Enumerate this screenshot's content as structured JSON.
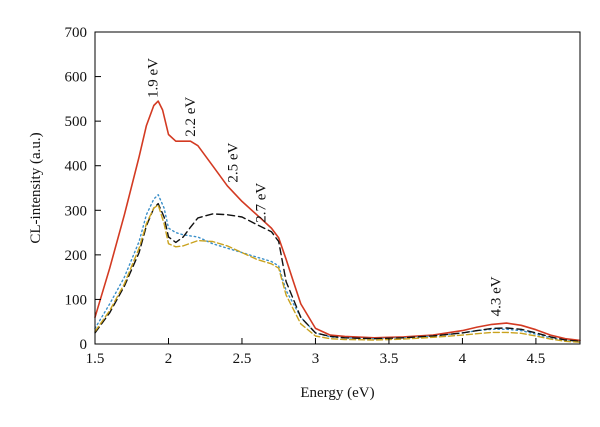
{
  "chart_data": {
    "type": "line",
    "title": "",
    "xlabel": "Energy (eV)",
    "ylabel": "CL-intensity (a.u.)",
    "xlim": [
      1.5,
      4.8
    ],
    "ylim": [
      0,
      700
    ],
    "x_ticks": [
      1.5,
      2,
      2.5,
      3,
      3.5,
      4,
      4.5
    ],
    "x_tick_labels": [
      "1.5",
      "2",
      "2.5",
      "3",
      "3.5",
      "4",
      "4.5"
    ],
    "y_ticks": [
      0,
      100,
      200,
      300,
      400,
      500,
      600,
      700
    ],
    "y_tick_labels": [
      "0",
      "100",
      "200",
      "300",
      "400",
      "500",
      "600",
      "700"
    ],
    "grid": false,
    "legend": "none",
    "series": [
      {
        "color": "#d33a22",
        "style": "solid",
        "x": [
          1.5,
          1.6,
          1.7,
          1.8,
          1.85,
          1.9,
          1.93,
          1.96,
          2.0,
          2.05,
          2.1,
          2.15,
          2.2,
          2.3,
          2.4,
          2.5,
          2.6,
          2.7,
          2.75,
          2.8,
          2.85,
          2.9,
          3.0,
          3.1,
          3.2,
          3.4,
          3.6,
          3.8,
          4.0,
          4.1,
          4.2,
          4.3,
          4.4,
          4.5,
          4.6,
          4.7,
          4.8
        ],
        "y": [
          60,
          170,
          290,
          420,
          490,
          535,
          545,
          525,
          470,
          455,
          455,
          455,
          445,
          400,
          355,
          320,
          290,
          260,
          238,
          190,
          140,
          90,
          35,
          20,
          17,
          14,
          16,
          20,
          30,
          38,
          44,
          47,
          42,
          32,
          20,
          12,
          8
        ]
      },
      {
        "color": "#3a8fc9",
        "style": "dotted",
        "x": [
          1.5,
          1.6,
          1.7,
          1.8,
          1.85,
          1.9,
          1.93,
          1.97,
          2.0,
          2.05,
          2.1,
          2.2,
          2.3,
          2.4,
          2.5,
          2.6,
          2.7,
          2.75,
          2.8,
          2.9,
          3.0,
          3.1,
          3.2,
          3.4,
          3.6,
          3.8,
          4.0,
          4.1,
          4.2,
          4.3,
          4.4,
          4.5,
          4.6,
          4.7,
          4.8
        ],
        "y": [
          35,
          90,
          150,
          230,
          290,
          325,
          335,
          305,
          260,
          250,
          245,
          240,
          225,
          215,
          205,
          195,
          185,
          175,
          120,
          60,
          25,
          16,
          14,
          12,
          14,
          18,
          25,
          30,
          33,
          33,
          30,
          22,
          14,
          8,
          5
        ]
      },
      {
        "color": "#111111",
        "style": "dashed",
        "x": [
          1.5,
          1.6,
          1.7,
          1.8,
          1.85,
          1.9,
          1.93,
          1.97,
          2.0,
          2.05,
          2.1,
          2.15,
          2.2,
          2.3,
          2.4,
          2.5,
          2.6,
          2.7,
          2.75,
          2.8,
          2.9,
          3.0,
          3.1,
          3.2,
          3.4,
          3.6,
          3.8,
          4.0,
          4.1,
          4.2,
          4.3,
          4.4,
          4.5,
          4.6,
          4.7,
          4.8
        ],
        "y": [
          25,
          70,
          130,
          205,
          265,
          305,
          315,
          285,
          240,
          228,
          240,
          262,
          283,
          292,
          290,
          285,
          268,
          252,
          230,
          140,
          60,
          25,
          17,
          14,
          12,
          14,
          18,
          25,
          30,
          35,
          36,
          33,
          25,
          16,
          9,
          6
        ]
      },
      {
        "color": "#c9a21e",
        "style": "dashed",
        "x": [
          1.5,
          1.6,
          1.7,
          1.8,
          1.85,
          1.9,
          1.93,
          1.97,
          2.0,
          2.05,
          2.1,
          2.2,
          2.3,
          2.4,
          2.5,
          2.6,
          2.7,
          2.75,
          2.8,
          2.9,
          3.0,
          3.1,
          3.2,
          3.4,
          3.6,
          3.8,
          4.0,
          4.1,
          4.2,
          4.3,
          4.4,
          4.5,
          4.6,
          4.7,
          4.8
        ],
        "y": [
          28,
          75,
          135,
          215,
          270,
          305,
          312,
          270,
          225,
          218,
          220,
          232,
          230,
          220,
          205,
          190,
          180,
          170,
          110,
          45,
          18,
          12,
          10,
          9,
          11,
          15,
          20,
          23,
          26,
          26,
          24,
          18,
          11,
          6,
          4
        ]
      }
    ],
    "annotations": [
      {
        "text": "1.9 eV",
        "x": 1.925,
        "y": 552
      },
      {
        "text": "2.2 eV",
        "x": 2.18,
        "y": 465
      },
      {
        "text": "2.5 eV",
        "x": 2.47,
        "y": 362
      },
      {
        "text": "2.7 eV",
        "x": 2.66,
        "y": 272
      },
      {
        "text": "4.3 eV",
        "x": 4.26,
        "y": 62
      }
    ]
  }
}
